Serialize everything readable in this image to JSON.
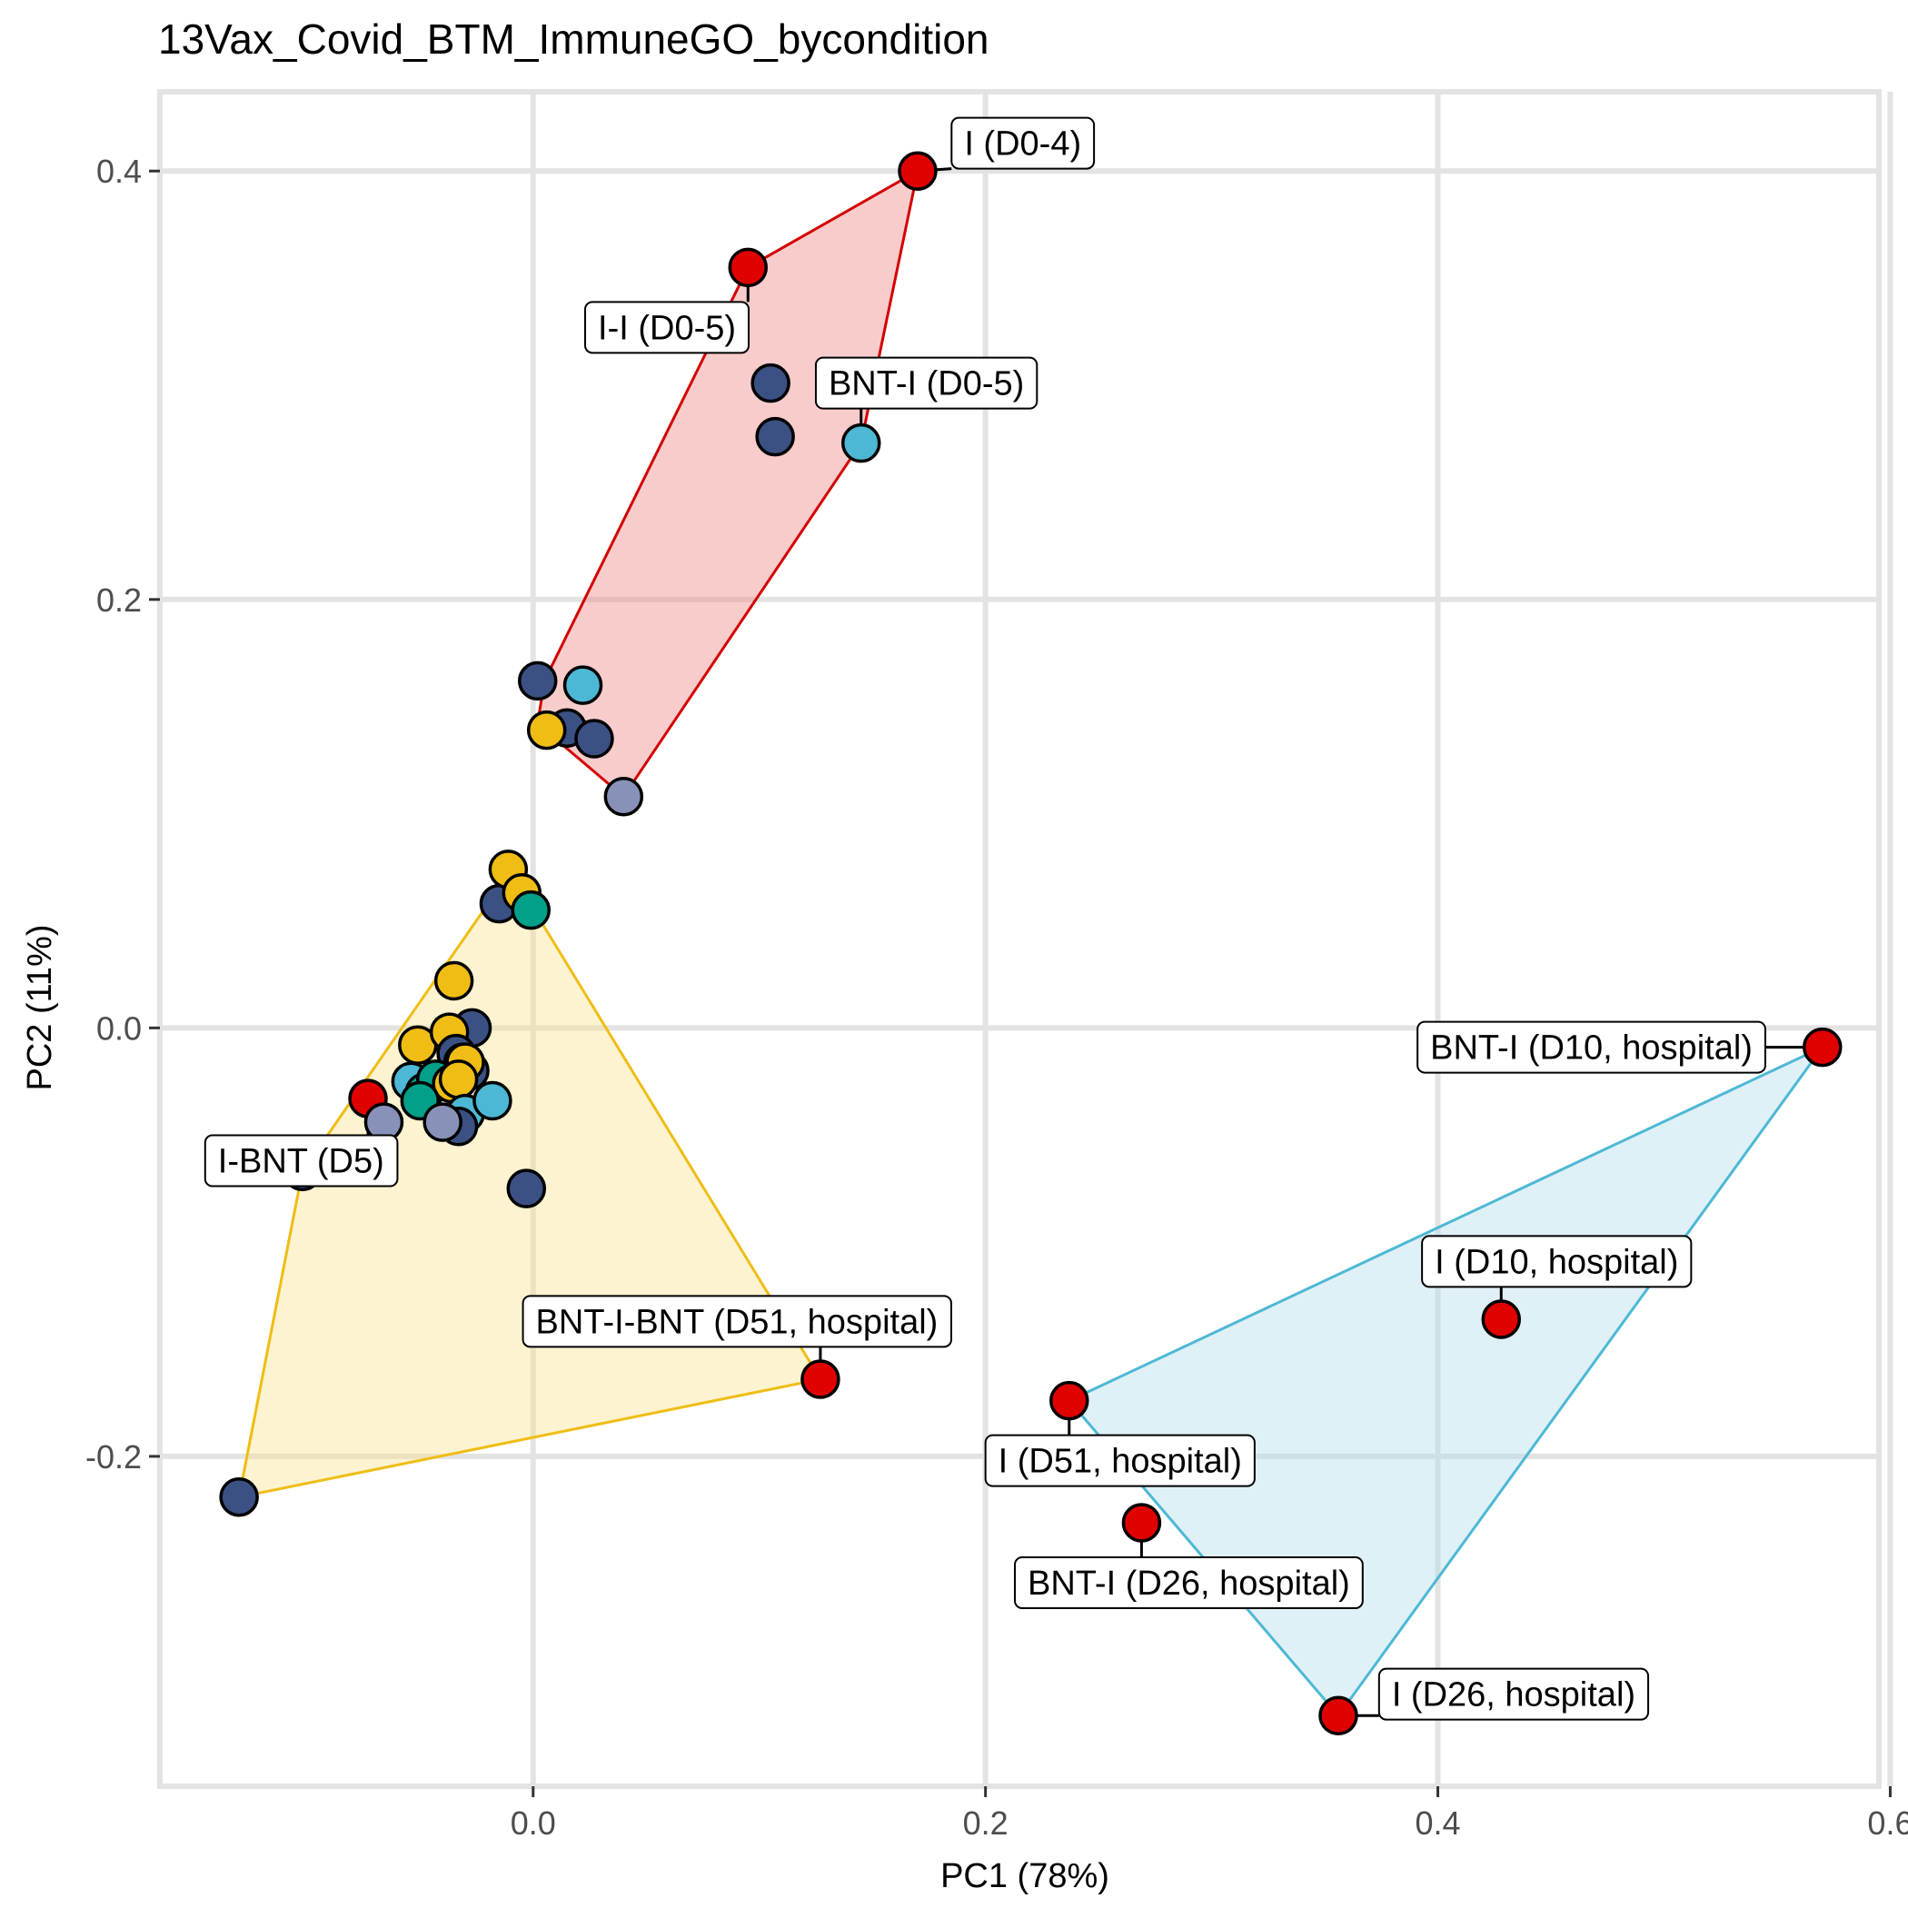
{
  "chart_data": {
    "type": "scatter",
    "title": "13Vax_Covid_BTM_ImmuneGO_bycondition",
    "xlabel": "PC1 (78%)",
    "ylabel": "PC2 (11%)",
    "xlim": [
      -0.165,
      0.595
    ],
    "ylim": [
      -0.354,
      0.437
    ],
    "xticks": [
      0.0,
      0.2,
      0.4,
      0.6
    ],
    "xtick_labels": [
      "0.0",
      "0.2",
      "0.4",
      "0.6"
    ],
    "yticks": [
      -0.2,
      0.0,
      0.2,
      0.4
    ],
    "ytick_labels": [
      "-0.2",
      "0.0",
      "0.2",
      "0.4"
    ],
    "grid": true,
    "legend": "none",
    "colors": {
      "red": "#e00000",
      "navy": "#3b5183",
      "sky": "#4db8d5",
      "gold": "#efbd14",
      "lavender": "#8892b8",
      "teal": "#029f89",
      "salmon": "#f19b80"
    },
    "hulls": [
      {
        "fill": "#f08080",
        "stroke": "#d40000",
        "points": [
          [
            0.17,
            0.4
          ],
          [
            0.095,
            0.355
          ],
          [
            0.005,
            0.162
          ],
          [
            0.002,
            0.142
          ],
          [
            0.04,
            0.108
          ],
          [
            0.145,
            0.273
          ]
        ]
      },
      {
        "fill": "#f9e08a",
        "stroke": "#efbd14",
        "points": [
          [
            -0.01,
            0.073
          ],
          [
            0.127,
            -0.164
          ],
          [
            -0.13,
            -0.219
          ],
          [
            -0.102,
            -0.067
          ]
        ]
      },
      {
        "fill": "#aedcec",
        "stroke": "#4db8d5",
        "points": [
          [
            0.57,
            -0.009
          ],
          [
            0.356,
            -0.321
          ],
          [
            0.237,
            -0.174
          ]
        ]
      }
    ],
    "points": [
      {
        "x": 0.17,
        "y": 0.4,
        "color": "red"
      },
      {
        "x": 0.095,
        "y": 0.355,
        "color": "red"
      },
      {
        "x": 0.105,
        "y": 0.301,
        "color": "navy"
      },
      {
        "x": 0.107,
        "y": 0.276,
        "color": "navy"
      },
      {
        "x": 0.145,
        "y": 0.273,
        "color": "sky"
      },
      {
        "x": 0.002,
        "y": 0.162,
        "color": "navy"
      },
      {
        "x": 0.022,
        "y": 0.16,
        "color": "sky"
      },
      {
        "x": 0.015,
        "y": 0.14,
        "color": "navy"
      },
      {
        "x": 0.027,
        "y": 0.135,
        "color": "navy"
      },
      {
        "x": 0.006,
        "y": 0.139,
        "color": "gold"
      },
      {
        "x": 0.04,
        "y": 0.108,
        "color": "lavender"
      },
      {
        "x": -0.015,
        "y": 0.058,
        "color": "navy"
      },
      {
        "x": -0.011,
        "y": 0.074,
        "color": "gold"
      },
      {
        "x": -0.005,
        "y": 0.063,
        "color": "gold"
      },
      {
        "x": -0.001,
        "y": 0.055,
        "color": "teal"
      },
      {
        "x": -0.035,
        "y": 0.022,
        "color": "gold"
      },
      {
        "x": -0.027,
        "y": 0.0,
        "color": "navy"
      },
      {
        "x": -0.051,
        "y": -0.008,
        "color": "gold"
      },
      {
        "x": -0.037,
        "y": -0.002,
        "color": "gold"
      },
      {
        "x": -0.034,
        "y": -0.012,
        "color": "navy"
      },
      {
        "x": -0.031,
        "y": -0.016,
        "color": "salmon"
      },
      {
        "x": -0.028,
        "y": -0.02,
        "color": "navy"
      },
      {
        "x": -0.03,
        "y": -0.016,
        "color": "gold"
      },
      {
        "x": -0.054,
        "y": -0.025,
        "color": "sky"
      },
      {
        "x": -0.048,
        "y": -0.03,
        "color": "teal"
      },
      {
        "x": -0.043,
        "y": -0.024,
        "color": "teal"
      },
      {
        "x": -0.036,
        "y": -0.026,
        "color": "gold"
      },
      {
        "x": -0.033,
        "y": -0.024,
        "color": "gold"
      },
      {
        "x": -0.05,
        "y": -0.034,
        "color": "teal"
      },
      {
        "x": -0.03,
        "y": -0.04,
        "color": "sky"
      },
      {
        "x": -0.018,
        "y": -0.034,
        "color": "sky"
      },
      {
        "x": -0.033,
        "y": -0.046,
        "color": "navy"
      },
      {
        "x": -0.04,
        "y": -0.044,
        "color": "lavender"
      },
      {
        "x": -0.073,
        "y": -0.033,
        "color": "red"
      },
      {
        "x": -0.066,
        "y": -0.044,
        "color": "lavender"
      },
      {
        "x": -0.102,
        "y": -0.067,
        "color": "navy"
      },
      {
        "x": -0.003,
        "y": -0.075,
        "color": "navy"
      },
      {
        "x": 0.127,
        "y": -0.164,
        "color": "red"
      },
      {
        "x": -0.13,
        "y": -0.219,
        "color": "navy"
      },
      {
        "x": 0.57,
        "y": -0.009,
        "color": "red"
      },
      {
        "x": 0.428,
        "y": -0.136,
        "color": "red"
      },
      {
        "x": 0.237,
        "y": -0.174,
        "color": "red"
      },
      {
        "x": 0.269,
        "y": -0.231,
        "color": "red"
      },
      {
        "x": 0.356,
        "y": -0.321,
        "color": "red"
      }
    ],
    "annotations": [
      {
        "text": "I (D0-4)",
        "x": 0.17,
        "y": 0.4,
        "box_x": 0.185,
        "box_y": 0.413,
        "anchor": "left"
      },
      {
        "text": "I-I (D0-5)",
        "x": 0.095,
        "y": 0.355,
        "box_x": 0.023,
        "box_y": 0.327,
        "anchor": "left"
      },
      {
        "text": "BNT-I (D0-5)",
        "x": 0.145,
        "y": 0.273,
        "box_x": 0.125,
        "box_y": 0.301,
        "anchor": "left"
      },
      {
        "text": "I-BNT (D5)",
        "x": -0.073,
        "y": -0.033,
        "box_x": -0.145,
        "box_y": -0.062,
        "anchor": "left"
      },
      {
        "text": "BNT-I-BNT (D51, hospital)",
        "x": 0.127,
        "y": -0.164,
        "box_x": -0.0045,
        "box_y": -0.137,
        "anchor": "left"
      },
      {
        "text": "BNT-I (D10, hospital)",
        "x": 0.57,
        "y": -0.009,
        "box_x": 0.391,
        "box_y": -0.009,
        "anchor": "left"
      },
      {
        "text": "I (D10, hospital)",
        "x": 0.428,
        "y": -0.136,
        "box_x": 0.393,
        "box_y": -0.109,
        "anchor": "left"
      },
      {
        "text": "I (D51, hospital)",
        "x": 0.237,
        "y": -0.174,
        "box_x": 0.2,
        "box_y": -0.202,
        "anchor": "left"
      },
      {
        "text": "BNT-I (D26, hospital)",
        "x": 0.269,
        "y": -0.231,
        "box_x": 0.213,
        "box_y": -0.259,
        "anchor": "left"
      },
      {
        "text": "I (D26, hospital)",
        "x": 0.356,
        "y": -0.321,
        "box_x": 0.374,
        "box_y": -0.311,
        "anchor": "left"
      }
    ]
  }
}
